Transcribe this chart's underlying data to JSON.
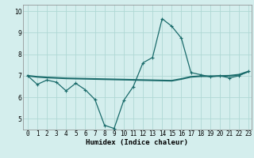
{
  "xlabel": "Humidex (Indice chaleur)",
  "bg_color": "#d4eeed",
  "line_color": "#1a6b6b",
  "grid_color": "#afd8d4",
  "xlim": [
    -0.5,
    23.3
  ],
  "ylim": [
    4.5,
    10.3
  ],
  "yticks": [
    5,
    6,
    7,
    8,
    9,
    10
  ],
  "xticks": [
    0,
    1,
    2,
    3,
    4,
    5,
    6,
    7,
    8,
    9,
    10,
    11,
    12,
    13,
    14,
    15,
    16,
    17,
    18,
    19,
    20,
    21,
    22,
    23
  ],
  "series1_x": [
    0,
    1,
    2,
    3,
    4,
    5,
    6,
    7,
    8,
    9,
    10,
    11,
    12,
    13,
    14,
    15,
    16,
    17,
    18,
    19,
    20,
    21,
    22,
    23
  ],
  "series1_y": [
    7.0,
    6.6,
    6.8,
    6.7,
    6.3,
    6.65,
    6.35,
    5.9,
    4.7,
    4.55,
    5.85,
    6.5,
    7.6,
    7.85,
    9.65,
    9.3,
    8.75,
    7.15,
    7.05,
    6.95,
    7.0,
    6.9,
    7.0,
    7.2
  ],
  "series2_x": [
    0,
    1,
    2,
    3,
    4,
    5,
    6,
    7,
    8,
    9,
    10,
    11,
    12,
    13,
    14,
    15,
    16,
    17,
    18,
    19,
    20,
    21,
    22,
    23
  ],
  "series2_y": [
    7.0,
    6.95,
    6.92,
    6.9,
    6.88,
    6.87,
    6.86,
    6.85,
    6.84,
    6.83,
    6.82,
    6.81,
    6.8,
    6.79,
    6.78,
    6.77,
    6.85,
    6.95,
    6.98,
    6.98,
    6.99,
    7.0,
    7.05,
    7.2
  ],
  "tick_fontsize": 5.5,
  "xlabel_fontsize": 6.5
}
